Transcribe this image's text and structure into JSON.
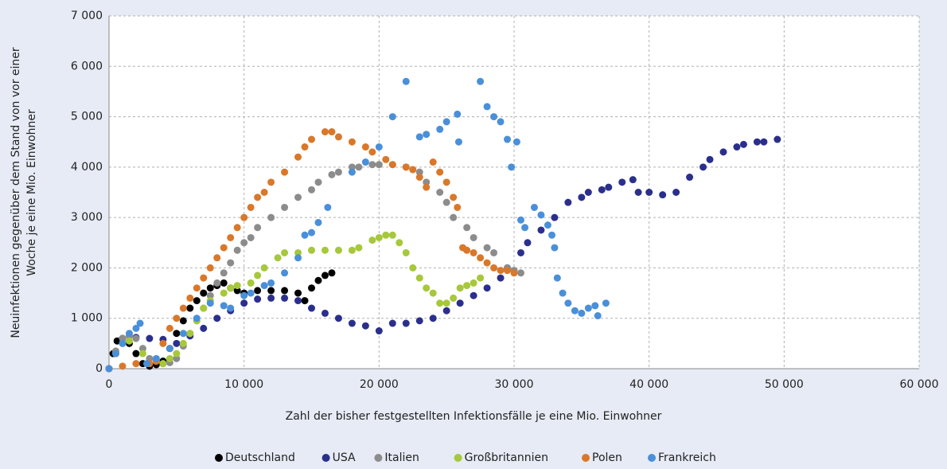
{
  "chart_data": {
    "type": "scatter",
    "xlabel": "Zahl der bisher festgestellten Infektionsfälle je eine Mio. Einwohner",
    "ylabel": [
      "Neuinfektionen gegenüber dem Stand von vor einer",
      "Woche je eine Mio. Einwohner"
    ],
    "xlim": [
      0,
      60000
    ],
    "ylim": [
      0,
      7000
    ],
    "grid": true,
    "legend": "bottom",
    "xticks": [
      0,
      {
        "value": 10000,
        "label": "10 000"
      },
      {
        "value": 20000,
        "label": "20 000"
      },
      {
        "value": 30000,
        "label": "30 000"
      },
      {
        "value": 40000,
        "label": "40 000"
      },
      {
        "value": 50000,
        "label": "50 000"
      },
      {
        "value": 60000,
        "label": "60 000"
      }
    ],
    "yticks": [
      0,
      {
        "value": 1000,
        "label": "1 000"
      },
      {
        "value": 2000,
        "label": "2 000"
      },
      {
        "value": 3000,
        "label": "3 000"
      },
      {
        "value": 4000,
        "label": "4 000"
      },
      {
        "value": 5000,
        "label": "5 000"
      },
      {
        "value": 6000,
        "label": "6 000"
      },
      {
        "value": 7000,
        "label": "7 000"
      }
    ],
    "series": [
      {
        "name": "Deutschland",
        "color": "#000000",
        "x": [
          0,
          300,
          600,
          1000,
          1500,
          2000,
          2500,
          3000,
          3500,
          4000,
          4500,
          5000,
          5500,
          6000,
          6500,
          7000,
          7500,
          8000,
          8500,
          9000,
          9500,
          10000,
          11000,
          12000,
          13000,
          14000,
          14500,
          15000,
          15500,
          16000,
          16500
        ],
        "values": [
          0,
          300,
          550,
          600,
          500,
          300,
          100,
          50,
          80,
          150,
          400,
          700,
          950,
          1200,
          1350,
          1500,
          1600,
          1650,
          1700,
          1600,
          1550,
          1500,
          1550,
          1550,
          1550,
          1500,
          1350,
          1600,
          1750,
          1850,
          1900
        ]
      },
      {
        "name": "USA",
        "color": "#2b2f8c",
        "x": [
          0,
          500,
          1000,
          2000,
          3000,
          4000,
          5000,
          6000,
          7000,
          8000,
          9000,
          10000,
          11000,
          12000,
          13000,
          14000,
          15000,
          16000,
          17000,
          18000,
          19000,
          20000,
          21000,
          22000,
          23000,
          24000,
          25000,
          26000,
          27000,
          28000,
          29000,
          29500,
          30500,
          31000,
          32000,
          33000,
          34000,
          35000,
          35500,
          36500,
          37000,
          38000,
          38800,
          39200,
          40000,
          41000,
          42000,
          43000,
          44000,
          44500,
          45500,
          46500,
          47000,
          48000,
          48500,
          49500
        ],
        "values": [
          0,
          300,
          600,
          620,
          600,
          580,
          500,
          650,
          800,
          1000,
          1150,
          1300,
          1380,
          1400,
          1400,
          1350,
          1200,
          1100,
          1000,
          900,
          850,
          750,
          900,
          900,
          950,
          1000,
          1150,
          1300,
          1450,
          1600,
          1800,
          2000,
          2300,
          2500,
          2750,
          3000,
          3300,
          3400,
          3500,
          3550,
          3600,
          3700,
          3750,
          3500,
          3500,
          3450,
          3500,
          3800,
          4000,
          4150,
          4300,
          4400,
          4450,
          4500,
          4500,
          4550
        ]
      },
      {
        "name": "Italien",
        "color": "#8c8c8c",
        "x": [
          0,
          500,
          1000,
          1500,
          2000,
          2500,
          3000,
          3500,
          4000,
          4500,
          5000,
          5500,
          6000,
          6500,
          7000,
          7500,
          8000,
          8500,
          9000,
          9500,
          10000,
          10500,
          11000,
          12000,
          13000,
          14000,
          15000,
          15500,
          16500,
          17000,
          18000,
          18500,
          19500,
          20000,
          21000,
          22000,
          23000,
          23500,
          24500,
          25000,
          25500,
          26500,
          27000,
          28000,
          28500,
          29500,
          30000,
          30500
        ],
        "values": [
          0,
          350,
          600,
          650,
          600,
          400,
          200,
          150,
          100,
          120,
          200,
          450,
          700,
          950,
          1200,
          1450,
          1700,
          1900,
          2100,
          2350,
          2500,
          2600,
          2800,
          3000,
          3200,
          3400,
          3550,
          3700,
          3850,
          3900,
          4000,
          4000,
          4050,
          4050,
          4050,
          4000,
          3900,
          3700,
          3500,
          3300,
          3000,
          2800,
          2600,
          2400,
          2300,
          2000,
          1950,
          1900
        ]
      },
      {
        "name": "Großbritannien",
        "color": "#a6c83a",
        "x": [
          0,
          500,
          1000,
          1500,
          2500,
          3500,
          4000,
          4500,
          5000,
          5500,
          6000,
          6500,
          7000,
          7500,
          8500,
          9000,
          9500,
          10500,
          11000,
          11500,
          12500,
          13000,
          14000,
          15000,
          16000,
          17000,
          18000,
          18500,
          19500,
          20000,
          20500,
          21000,
          21500,
          22000,
          22500,
          23000,
          23500,
          24000,
          24500,
          25000,
          25500,
          26000,
          26500,
          27000,
          27500
        ],
        "values": [
          0,
          300,
          500,
          550,
          300,
          150,
          100,
          200,
          300,
          500,
          700,
          950,
          1200,
          1350,
          1500,
          1600,
          1650,
          1700,
          1850,
          2000,
          2200,
          2300,
          2300,
          2350,
          2350,
          2350,
          2350,
          2400,
          2550,
          2600,
          2650,
          2650,
          2500,
          2300,
          2000,
          1800,
          1600,
          1500,
          1300,
          1300,
          1400,
          1600,
          1650,
          1700,
          1800
        ]
      },
      {
        "name": "Polen",
        "color": "#d9782a",
        "x": [
          0,
          1000,
          2000,
          3000,
          3500,
          4000,
          4500,
          5000,
          5500,
          6000,
          6500,
          7000,
          7500,
          8000,
          8500,
          9000,
          9500,
          10000,
          10500,
          11000,
          11500,
          12000,
          13000,
          14000,
          14500,
          15000,
          16000,
          16500,
          17000,
          18000,
          19000,
          19500,
          20500,
          21000,
          22000,
          22500,
          23000,
          23500,
          24000,
          24500,
          25000,
          25500,
          25800,
          26200,
          26500,
          27000,
          27500,
          28000,
          28500,
          29000,
          29500,
          30000
        ],
        "values": [
          0,
          50,
          100,
          100,
          150,
          500,
          800,
          1000,
          1200,
          1400,
          1600,
          1800,
          2000,
          2200,
          2400,
          2600,
          2800,
          3000,
          3200,
          3400,
          3500,
          3700,
          3900,
          4200,
          4400,
          4550,
          4700,
          4700,
          4600,
          4500,
          4400,
          4300,
          4150,
          4050,
          4000,
          3950,
          3800,
          3600,
          4100,
          3900,
          3700,
          3400,
          3200,
          2400,
          2350,
          2300,
          2200,
          2100,
          2000,
          1950,
          1950,
          1900
        ]
      },
      {
        "name": "Frankreich",
        "color": "#4a8fd9",
        "x": [
          0,
          500,
          1000,
          1500,
          2000,
          2300,
          2800,
          3500,
          4500,
          5500,
          6500,
          7500,
          8500,
          9000,
          10000,
          10500,
          11500,
          12000,
          13000,
          14000,
          14500,
          15000,
          15500,
          16200,
          18000,
          19000,
          20000,
          21000,
          22000,
          23000,
          23500,
          24500,
          25000,
          25800,
          25900,
          27500,
          28000,
          28500,
          29000,
          29500,
          29800,
          30200,
          30500,
          30800,
          31500,
          32000,
          32500,
          32800,
          33000,
          33200,
          33600,
          34000,
          34500,
          35000,
          35500,
          36000,
          36200,
          36800
        ],
        "values": [
          0,
          300,
          500,
          700,
          800,
          900,
          100,
          200,
          400,
          700,
          1000,
          1300,
          1250,
          1200,
          1450,
          1500,
          1650,
          1700,
          1900,
          2200,
          2650,
          2700,
          2900,
          3200,
          3900,
          4100,
          4400,
          5000,
          5700,
          4600,
          4650,
          4750,
          4900,
          5050,
          4500,
          5700,
          5200,
          5000,
          4900,
          4550,
          4000,
          4500,
          2950,
          2800,
          3200,
          3050,
          2850,
          2650,
          2400,
          1800,
          1500,
          1300,
          1150,
          1100,
          1200,
          1250,
          1050,
          1300
        ]
      }
    ]
  }
}
